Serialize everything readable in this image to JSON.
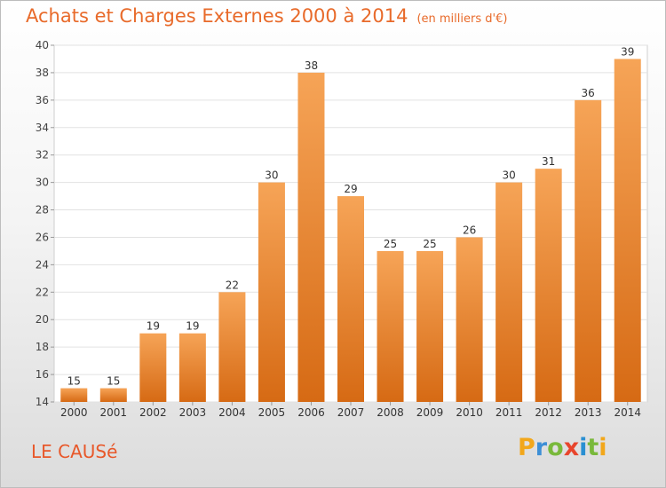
{
  "title": "Achats et Charges Externes 2000 à 2014",
  "unit": "(en milliers d'€)",
  "commune": "LE CAUSé",
  "brand": {
    "letters": [
      "P",
      "r",
      "o",
      "x",
      "i",
      "t",
      "i"
    ],
    "colors": [
      "#f2a71b",
      "#3d8fd6",
      "#79b93b",
      "#e8452c",
      "#2a8fd2",
      "#79b93b",
      "#f2a71b"
    ]
  },
  "colors": {
    "bar": "#f28c38",
    "bar_dark": "#d96c16",
    "title": "#e86a2a"
  },
  "chart_data": {
    "type": "bar",
    "categories": [
      "2000",
      "2001",
      "2002",
      "2003",
      "2004",
      "2005",
      "2006",
      "2007",
      "2008",
      "2009",
      "2010",
      "2011",
      "2012",
      "2013",
      "2014"
    ],
    "values": [
      15,
      15,
      19,
      19,
      22,
      30,
      38,
      29,
      25,
      25,
      26,
      30,
      31,
      36,
      39
    ],
    "ylim": [
      14,
      40
    ],
    "yticks": [
      14,
      16,
      18,
      20,
      22,
      24,
      26,
      28,
      30,
      32,
      34,
      36,
      38,
      40
    ],
    "grid": true
  }
}
